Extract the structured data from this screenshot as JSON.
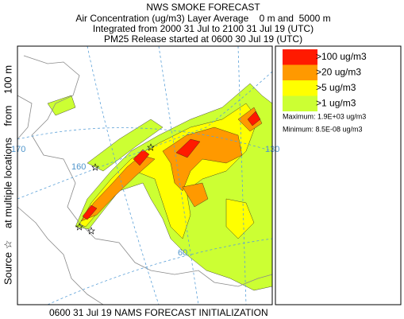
{
  "header": {
    "title": "NWS SMOKE FORECAST",
    "lines": [
      "Air Concentration (ug/m3) Layer Average    0 m and  5000 m",
      "Integrated from 2000 31 Jul to 2100 31 Jul 19 (UTC)",
      "PM25 Release started at 0600 30 Jul 19 (UTC)"
    ]
  },
  "legend": {
    "entries": [
      {
        "label": ">100 ug/m3",
        "color": "#ff1a00"
      },
      {
        "label": ">20 ug/m3",
        "color": "#ff9900"
      },
      {
        "label": ">5 ug/m3",
        "color": "#ffff00"
      },
      {
        "label": ">1 ug/m3",
        "color": "#ccff33"
      }
    ],
    "maximum": "Maximum: 1.9E+03 ug/m3",
    "minimum": "Minimum: 8.5E-08 ug/m3"
  },
  "map_labels": [
    "170",
    "160",
    "60",
    "130"
  ],
  "side_label": "Source ☆    at multiple locations    from    100 m",
  "footer": "0600 31 Jul 19 NAMS FORECAST INITIALIZATION"
}
